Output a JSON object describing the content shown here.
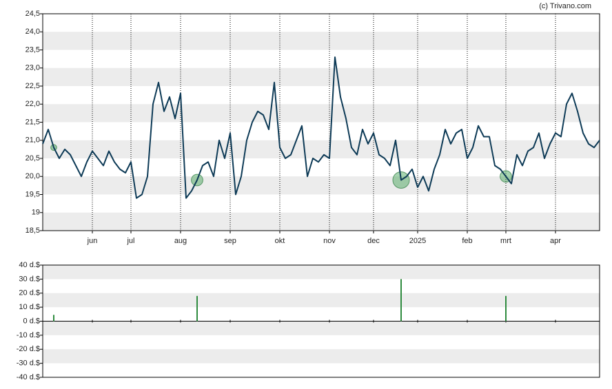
{
  "credit": "(c) Trivano.com",
  "chart_data": [
    {
      "type": "line",
      "categories": [
        null,
        null,
        null,
        null,
        null,
        null,
        null,
        null,
        null,
        "jun",
        null,
        null,
        null,
        null,
        null,
        null,
        "jul",
        null,
        null,
        null,
        null,
        null,
        null,
        null,
        null,
        "aug",
        null,
        null,
        null,
        null,
        null,
        null,
        null,
        null,
        "sep",
        null,
        null,
        null,
        null,
        null,
        null,
        null,
        null,
        "okt",
        null,
        null,
        null,
        null,
        null,
        null,
        null,
        null,
        "nov",
        null,
        null,
        null,
        null,
        null,
        null,
        null,
        "dec",
        null,
        null,
        null,
        null,
        null,
        null,
        null,
        "2025",
        null,
        null,
        null,
        null,
        null,
        null,
        null,
        null,
        "feb",
        null,
        null,
        null,
        null,
        null,
        null,
        "mrt",
        null,
        null,
        null,
        null,
        null,
        null,
        null,
        null,
        "apr",
        null,
        null,
        null,
        null,
        null,
        null,
        null,
        null
      ],
      "series": [
        {
          "color": "#0d3a56",
          "values": [
            20.9,
            21.3,
            20.8,
            20.5,
            20.75,
            20.6,
            20.3,
            20.0,
            20.4,
            20.7,
            20.5,
            20.3,
            20.7,
            20.4,
            20.2,
            20.1,
            20.4,
            19.4,
            19.5,
            20.0,
            22.0,
            22.6,
            21.8,
            22.2,
            21.6,
            22.3,
            19.4,
            19.6,
            19.9,
            20.3,
            20.4,
            20.0,
            21.0,
            20.5,
            21.2,
            19.5,
            20.0,
            21.0,
            21.5,
            21.8,
            21.7,
            21.3,
            22.6,
            20.8,
            20.5,
            20.6,
            21.0,
            21.4,
            20.0,
            20.5,
            20.4,
            20.6,
            20.5,
            23.3,
            22.2,
            21.6,
            20.8,
            20.6,
            21.3,
            20.9,
            21.2,
            20.6,
            20.5,
            20.3,
            21.0,
            19.9,
            20.0,
            20.2,
            19.7,
            20.0,
            19.6,
            20.2,
            20.6,
            21.3,
            20.9,
            21.2,
            21.3,
            20.5,
            20.8,
            21.4,
            21.1,
            21.1,
            20.3,
            20.2,
            20.0,
            19.8,
            20.6,
            20.3,
            20.7,
            20.8,
            21.2,
            20.5,
            20.9,
            21.2,
            21.1,
            22.0,
            22.3,
            21.8,
            21.2,
            20.9,
            20.8,
            21.0
          ]
        }
      ],
      "ylim": [
        18.5,
        24.5
      ],
      "yticks": [
        {
          "value": 18.5,
          "label": "18,5"
        },
        19,
        {
          "value": 19.5,
          "label": "19,5"
        },
        {
          "value": 20,
          "label": "20,0"
        },
        {
          "value": 20.5,
          "label": "20,5"
        },
        {
          "value": 21,
          "label": "21,0"
        },
        {
          "value": 21.5,
          "label": "21,5"
        },
        {
          "value": 22,
          "label": "22,0"
        },
        {
          "value": 22.5,
          "label": "22,5"
        },
        {
          "value": 23,
          "label": "23,0"
        },
        {
          "value": 23.5,
          "label": "23,5"
        },
        {
          "value": 24,
          "label": "24,0"
        },
        {
          "value": 24.5,
          "label": "24,5"
        }
      ],
      "grid": true
    },
    {
      "type": "bar",
      "color": "#2e8b3e",
      "values": [
        null,
        null,
        4.5,
        null,
        null,
        null,
        null,
        null,
        null,
        null,
        null,
        null,
        null,
        null,
        null,
        null,
        null,
        null,
        null,
        null,
        null,
        null,
        null,
        null,
        null,
        null,
        null,
        null,
        18,
        null,
        null,
        null,
        null,
        null,
        null,
        null,
        null,
        null,
        null,
        null,
        null,
        null,
        null,
        null,
        null,
        null,
        null,
        null,
        null,
        null,
        null,
        null,
        null,
        null,
        null,
        null,
        null,
        null,
        null,
        null,
        null,
        null,
        null,
        null,
        null,
        30,
        null,
        null,
        null,
        null,
        null,
        null,
        null,
        null,
        null,
        null,
        null,
        null,
        null,
        null,
        null,
        null,
        null,
        null,
        18,
        null,
        null,
        null,
        null,
        null,
        null,
        null,
        null,
        null,
        null,
        null,
        null,
        null,
        null,
        null,
        null,
        null
      ],
      "ylim": [
        -40,
        40
      ],
      "yticks": [
        {
          "value": 40,
          "label": "40 d.$"
        },
        {
          "value": 30,
          "label": "30 d.$"
        },
        {
          "value": 20,
          "label": "20 d.$"
        },
        {
          "value": 10,
          "label": "10 d.$"
        },
        {
          "value": 0,
          "label": "0 d.$"
        },
        {
          "value": -10,
          "label": "-10 d.$"
        },
        {
          "value": -20,
          "label": "-20 d.$"
        },
        {
          "value": -30,
          "label": "-30 d.$"
        },
        {
          "value": -40,
          "label": "-40 d.$"
        }
      ]
    }
  ]
}
